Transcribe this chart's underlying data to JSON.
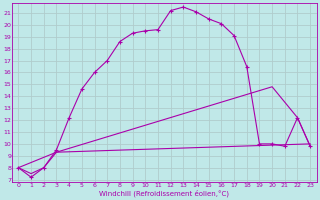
{
  "xlabel": "Windchill (Refroidissement éolien,°C)",
  "background_color": "#c0e8e8",
  "grid_color": "#b0cccc",
  "line_color": "#aa00aa",
  "xlim": [
    -0.5,
    23.5
  ],
  "ylim": [
    6.8,
    21.8
  ],
  "xticks": [
    0,
    1,
    2,
    3,
    4,
    5,
    6,
    7,
    8,
    9,
    10,
    11,
    12,
    13,
    14,
    15,
    16,
    17,
    18,
    19,
    20,
    21,
    22,
    23
  ],
  "yticks": [
    7,
    8,
    9,
    10,
    11,
    12,
    13,
    14,
    15,
    16,
    17,
    18,
    19,
    20,
    21
  ],
  "curve1_x": [
    0,
    1,
    2,
    3,
    4,
    5,
    6,
    7,
    8,
    9,
    10,
    11,
    12,
    13,
    14,
    15,
    16,
    17,
    18,
    19,
    20,
    21,
    22,
    23
  ],
  "curve1_y": [
    8.0,
    7.2,
    8.0,
    9.5,
    12.2,
    14.6,
    16.0,
    17.0,
    18.6,
    19.3,
    19.5,
    19.6,
    21.2,
    21.5,
    21.1,
    20.5,
    20.1,
    19.1,
    16.5,
    10.0,
    10.0,
    9.8,
    12.2,
    9.8
  ],
  "curve2_x": [
    0,
    1,
    2,
    3,
    23
  ],
  "curve2_y": [
    8.0,
    7.5,
    8.0,
    9.3,
    10.0
  ],
  "curve3_x": [
    0,
    3,
    20,
    22,
    23
  ],
  "curve3_y": [
    8.0,
    9.3,
    14.8,
    12.2,
    9.8
  ]
}
